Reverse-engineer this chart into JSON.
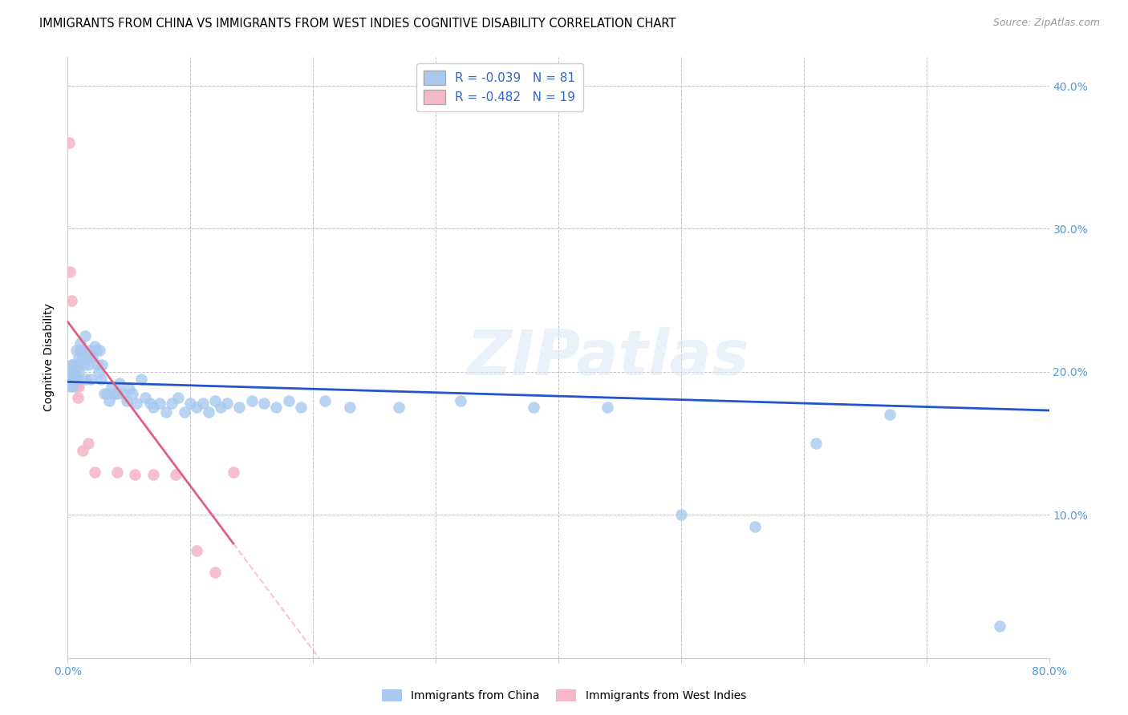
{
  "title": "IMMIGRANTS FROM CHINA VS IMMIGRANTS FROM WEST INDIES COGNITIVE DISABILITY CORRELATION CHART",
  "source": "Source: ZipAtlas.com",
  "ylabel": "Cognitive Disability",
  "xlim": [
    0.0,
    0.8
  ],
  "ylim": [
    0.0,
    0.42
  ],
  "r_china": -0.039,
  "n_china": 81,
  "r_west_indies": -0.482,
  "n_west_indies": 19,
  "china_color": "#a8c8f0",
  "west_indies_color": "#f5b8c8",
  "china_line_color": "#2255cc",
  "west_indies_line_color": "#e06080",
  "watermark": "ZIPatlas",
  "china_scatter_x": [
    0.001,
    0.002,
    0.002,
    0.003,
    0.003,
    0.004,
    0.004,
    0.005,
    0.005,
    0.006,
    0.006,
    0.007,
    0.007,
    0.008,
    0.008,
    0.009,
    0.009,
    0.01,
    0.01,
    0.011,
    0.012,
    0.013,
    0.014,
    0.015,
    0.016,
    0.017,
    0.018,
    0.019,
    0.02,
    0.022,
    0.023,
    0.024,
    0.025,
    0.026,
    0.027,
    0.028,
    0.03,
    0.032,
    0.034,
    0.036,
    0.038,
    0.04,
    0.042,
    0.045,
    0.048,
    0.05,
    0.053,
    0.056,
    0.06,
    0.063,
    0.067,
    0.07,
    0.075,
    0.08,
    0.085,
    0.09,
    0.095,
    0.1,
    0.105,
    0.11,
    0.115,
    0.12,
    0.125,
    0.13,
    0.14,
    0.15,
    0.16,
    0.17,
    0.18,
    0.19,
    0.21,
    0.23,
    0.27,
    0.32,
    0.38,
    0.44,
    0.5,
    0.56,
    0.61,
    0.67,
    0.76
  ],
  "china_scatter_y": [
    0.195,
    0.2,
    0.19,
    0.195,
    0.205,
    0.195,
    0.19,
    0.2,
    0.195,
    0.205,
    0.2,
    0.195,
    0.215,
    0.205,
    0.195,
    0.21,
    0.2,
    0.22,
    0.215,
    0.215,
    0.21,
    0.205,
    0.225,
    0.195,
    0.21,
    0.205,
    0.215,
    0.195,
    0.21,
    0.218,
    0.215,
    0.205,
    0.2,
    0.215,
    0.195,
    0.205,
    0.185,
    0.185,
    0.18,
    0.19,
    0.185,
    0.185,
    0.192,
    0.185,
    0.18,
    0.188,
    0.185,
    0.178,
    0.195,
    0.182,
    0.178,
    0.175,
    0.178,
    0.172,
    0.178,
    0.182,
    0.172,
    0.178,
    0.175,
    0.178,
    0.172,
    0.18,
    0.175,
    0.178,
    0.175,
    0.18,
    0.178,
    0.175,
    0.18,
    0.175,
    0.18,
    0.175,
    0.175,
    0.18,
    0.175,
    0.175,
    0.1,
    0.092,
    0.15,
    0.17,
    0.022
  ],
  "west_indies_scatter_x": [
    0.001,
    0.002,
    0.003,
    0.004,
    0.005,
    0.006,
    0.007,
    0.008,
    0.009,
    0.012,
    0.017,
    0.022,
    0.04,
    0.055,
    0.07,
    0.088,
    0.105,
    0.12,
    0.135
  ],
  "west_indies_scatter_y": [
    0.36,
    0.27,
    0.25,
    0.205,
    0.195,
    0.195,
    0.19,
    0.182,
    0.19,
    0.145,
    0.15,
    0.13,
    0.13,
    0.128,
    0.128,
    0.128,
    0.075,
    0.06,
    0.13
  ],
  "background_color": "#ffffff",
  "grid_color": "#bbbbbb"
}
